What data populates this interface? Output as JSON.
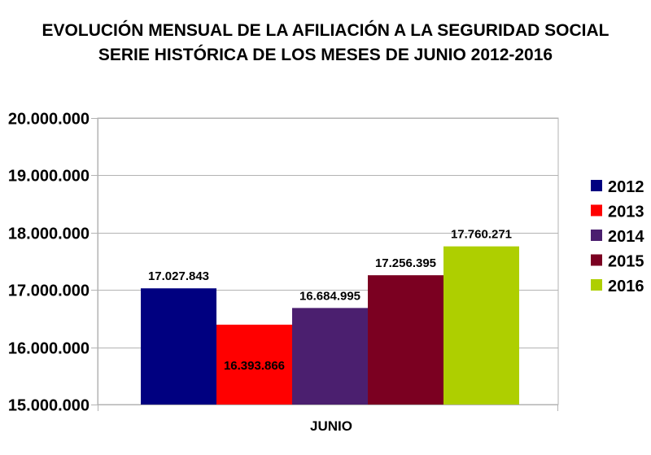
{
  "chart_data": {
    "type": "bar",
    "title": "EVOLUCIÓN MENSUAL DE LA  AFILIACIÓN A LA SEGURIDAD SOCIAL",
    "subtitle": "SERIE HISTÓRICA DE LOS MESES DE JUNIO 2012-2016",
    "categories": [
      "JUNIO"
    ],
    "series": [
      {
        "name": "2012",
        "values": [
          17027843
        ],
        "label": "17.027.843",
        "color": "#000080"
      },
      {
        "name": "2013",
        "values": [
          16393866
        ],
        "label": "16.393.866",
        "color": "#ff0000"
      },
      {
        "name": "2014",
        "values": [
          16684995
        ],
        "label": "16.684.995",
        "color": "#4b1f6f"
      },
      {
        "name": "2015",
        "values": [
          17256395
        ],
        "label": "17.256.395",
        "color": "#7b0021"
      },
      {
        "name": "2016",
        "values": [
          17760271
        ],
        "label": "17.760.271",
        "color": "#aecf00"
      }
    ],
    "ylim": [
      15000000,
      20000000
    ],
    "yticks": [
      {
        "value": 15000000,
        "label": "15.000.000"
      },
      {
        "value": 16000000,
        "label": "16.000.000"
      },
      {
        "value": 17000000,
        "label": "17.000.000"
      },
      {
        "value": 18000000,
        "label": "18.000.000"
      },
      {
        "value": 19000000,
        "label": "19.000.000"
      },
      {
        "value": 20000000,
        "label": "20.000.000"
      }
    ],
    "grid": true,
    "legend_position": "right"
  }
}
